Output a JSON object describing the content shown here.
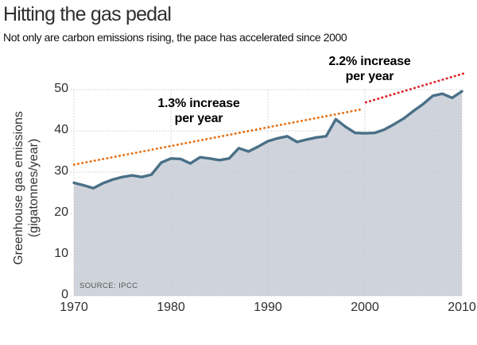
{
  "header": {
    "title": "Hitting the gas pedal",
    "subtitle": "Not only are carbon emissions rising, the pace has accelerated since 2000"
  },
  "source": "SOURCE: IPCC",
  "colors": {
    "line": "#4a7087",
    "area_fill": "#cfd4dc",
    "grid": "#c7c7c7",
    "trend1": "#e87014",
    "trend2": "#de2129",
    "tick_text": "#2e2e2e"
  },
  "chart_data": {
    "type": "area",
    "title": "Hitting the gas pedal",
    "subtitle": "Not only are carbon emissions rising, the pace has accelerated since 2000",
    "xlabel": "",
    "ylabel": "Greenhouse gas emissions (gigatonnes/year)",
    "ylabel_lines": [
      "Greenhouse gas emissions",
      "(gigatonnes/year)"
    ],
    "source": "SOURCE: IPCC",
    "grid": true,
    "x_range": [
      1970,
      2010
    ],
    "ylim": [
      0,
      50
    ],
    "xticks": [
      1970,
      1980,
      1990,
      2000,
      2010
    ],
    "yticks": [
      0,
      10,
      20,
      30,
      40,
      50
    ],
    "series_name": "Greenhouse gas emissions (gigatonnes/year)",
    "x": [
      1970,
      1971,
      1972,
      1973,
      1974,
      1975,
      1976,
      1977,
      1978,
      1979,
      1980,
      1981,
      1982,
      1983,
      1984,
      1985,
      1986,
      1987,
      1988,
      1989,
      1990,
      1991,
      1992,
      1993,
      1994,
      1995,
      1996,
      1997,
      1998,
      1999,
      2000,
      2001,
      2002,
      2003,
      2004,
      2005,
      2006,
      2007,
      2008,
      2009,
      2010
    ],
    "values": [
      27.4,
      26.8,
      26.1,
      27.3,
      28.2,
      28.8,
      29.2,
      28.8,
      29.4,
      32.3,
      33.3,
      33.2,
      32.1,
      33.6,
      33.3,
      32.9,
      33.3,
      35.8,
      35.0,
      36.2,
      37.5,
      38.2,
      38.7,
      37.3,
      37.9,
      38.4,
      38.7,
      42.8,
      41.0,
      39.5,
      39.4,
      39.5,
      40.3,
      41.6,
      43.0,
      44.8,
      46.5,
      48.5,
      49.0,
      48.0,
      49.6
    ],
    "trend_lines": [
      {
        "name": "trend-1.3-percent",
        "label_lines": [
          "1.3% increase",
          "per year"
        ],
        "color": "#e87014",
        "x_start": 1970,
        "y_start": 31.8,
        "x_end": 1999.6,
        "y_end": 45.2
      },
      {
        "name": "trend-2.2-percent",
        "label_lines": [
          "2.2% increase",
          "per year"
        ],
        "color": "#de2129",
        "x_start": 2000.1,
        "y_start": 46.9,
        "x_end": 2010.3,
        "y_end": 54.0
      }
    ]
  }
}
